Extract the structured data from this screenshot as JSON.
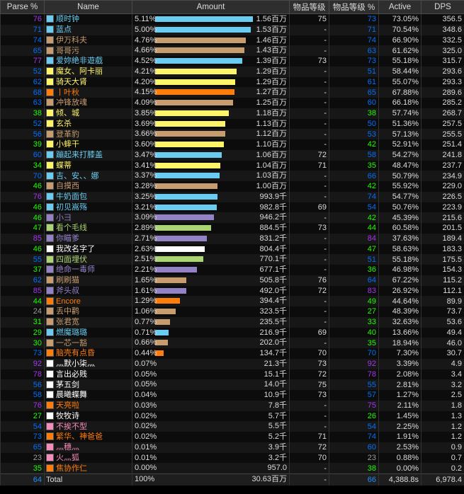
{
  "headers": {
    "parse": "Parse %",
    "name": "Name",
    "amount": "Amount",
    "ilvl": "物品等级",
    "ilvl_parse": "物品等级 %",
    "active": "Active",
    "dps": "DPS"
  },
  "class_colors": {
    "mage": "#69ccf0",
    "hunter": "#abd473",
    "druid": "#ff7d0a",
    "warrior": "#c79c6e",
    "rogue": "#fff569",
    "warlock": "#9482c9",
    "priest": "#ffffff",
    "shaman": "#0070de",
    "paladin": "#f58cba",
    "deathknight": "#c41f3b"
  },
  "rows": [
    {
      "parse": "76",
      "name": "顺时钟",
      "cls": "mage",
      "pct": "5.11%",
      "bar": 1.0,
      "amount": "1.56百万",
      "ilvl": "75",
      "ilvlp": "73",
      "active": "73.05%",
      "dps": "356.5"
    },
    {
      "parse": "71",
      "name": "蓝点",
      "cls": "mage",
      "pct": "5.00%",
      "bar": 0.98,
      "amount": "1.53百万",
      "ilvl": "-",
      "ilvlp": "71",
      "active": "70.54%",
      "dps": "348.6"
    },
    {
      "parse": "74",
      "name": "伊万科夫",
      "cls": "warrior",
      "pct": "4.76%",
      "bar": 0.93,
      "amount": "1.46百万",
      "ilvl": "-",
      "ilvlp": "74",
      "active": "66.90%",
      "dps": "332.5"
    },
    {
      "parse": "65",
      "name": "哥哥污",
      "cls": "warrior",
      "pct": "4.66%",
      "bar": 0.91,
      "amount": "1.43百万",
      "ilvl": "-",
      "ilvlp": "63",
      "active": "61.62%",
      "dps": "325.0"
    },
    {
      "parse": "77",
      "name": "爱妳絶非遊戲",
      "cls": "mage",
      "pct": "4.52%",
      "bar": 0.89,
      "amount": "1.39百万",
      "ilvl": "73",
      "ilvlp": "73",
      "active": "55.18%",
      "dps": "315.7"
    },
    {
      "parse": "52",
      "name": "魔女、阿卡丽",
      "cls": "rogue",
      "pct": "4.21%",
      "bar": 0.83,
      "amount": "1.29百万",
      "ilvl": "-",
      "ilvlp": "51",
      "active": "58.44%",
      "dps": "293.6"
    },
    {
      "parse": "62",
      "name": "骑天大肾",
      "cls": "rogue",
      "pct": "4.20%",
      "bar": 0.82,
      "amount": "1.29百万",
      "ilvl": "-",
      "ilvlp": "61",
      "active": "55.07%",
      "dps": "293.3"
    },
    {
      "parse": "68",
      "name": "丨叶秋",
      "cls": "druid",
      "pct": "4.15%",
      "bar": 0.81,
      "amount": "1.27百万",
      "ilvl": "-",
      "ilvlp": "65",
      "active": "67.88%",
      "dps": "289.6"
    },
    {
      "parse": "63",
      "name": "冲锋放魂",
      "cls": "warrior",
      "pct": "4.09%",
      "bar": 0.8,
      "amount": "1.25百万",
      "ilvl": "-",
      "ilvlp": "60",
      "active": "66.18%",
      "dps": "285.2"
    },
    {
      "parse": "38",
      "name": "倾、城",
      "cls": "rogue",
      "pct": "3.85%",
      "bar": 0.75,
      "amount": "1.18百万",
      "ilvl": "-",
      "ilvlp": "38",
      "active": "57.74%",
      "dps": "268.7"
    },
    {
      "parse": "52",
      "name": "玄杀",
      "cls": "rogue",
      "pct": "3.69%",
      "bar": 0.72,
      "amount": "1.13百万",
      "ilvl": "-",
      "ilvlp": "50",
      "active": "51.36%",
      "dps": "257.5"
    },
    {
      "parse": "56",
      "name": "登革豹",
      "cls": "warrior",
      "pct": "3.66%",
      "bar": 0.72,
      "amount": "1.12百万",
      "ilvl": "-",
      "ilvlp": "53",
      "active": "57.13%",
      "dps": "255.5"
    },
    {
      "parse": "39",
      "name": "小蟀干",
      "cls": "rogue",
      "pct": "3.60%",
      "bar": 0.7,
      "amount": "1.10百万",
      "ilvl": "-",
      "ilvlp": "42",
      "active": "52.91%",
      "dps": "251.4"
    },
    {
      "parse": "60",
      "name": "蹦起来打膝盖",
      "cls": "mage",
      "pct": "3.47%",
      "bar": 0.68,
      "amount": "1.06百万",
      "ilvl": "72",
      "ilvlp": "58",
      "active": "54.27%",
      "dps": "241.8"
    },
    {
      "parse": "34",
      "name": "蝶蒂",
      "cls": "rogue",
      "pct": "3.41%",
      "bar": 0.67,
      "amount": "1.04百万",
      "ilvl": "71",
      "ilvlp": "35",
      "active": "48.47%",
      "dps": "237.7"
    },
    {
      "parse": "70",
      "name": "吉、安、、娜",
      "cls": "mage",
      "pct": "3.37%",
      "bar": 0.66,
      "amount": "1.03百万",
      "ilvl": "-",
      "ilvlp": "66",
      "active": "50.79%",
      "dps": "234.9"
    },
    {
      "parse": "46",
      "name": "自摸西",
      "cls": "warrior",
      "pct": "3.28%",
      "bar": 0.64,
      "amount": "1.00百万",
      "ilvl": "-",
      "ilvlp": "42",
      "active": "55.92%",
      "dps": "229.0"
    },
    {
      "parse": "76",
      "name": "牛奶面包",
      "cls": "mage",
      "pct": "3.25%",
      "bar": 0.64,
      "amount": "993.9千",
      "ilvl": "-",
      "ilvlp": "74",
      "active": "54.77%",
      "dps": "226.5"
    },
    {
      "parse": "46",
      "name": "初见嵩殇",
      "cls": "mage",
      "pct": "3.21%",
      "bar": 0.63,
      "amount": "982.8千",
      "ilvl": "69",
      "ilvlp": "54",
      "active": "50.76%",
      "dps": "223.9"
    },
    {
      "parse": "46",
      "name": "小彐",
      "cls": "warlock",
      "pct": "3.09%",
      "bar": 0.6,
      "amount": "946.2千",
      "ilvl": "-",
      "ilvlp": "42",
      "active": "45.39%",
      "dps": "215.6"
    },
    {
      "parse": "47",
      "name": "看个毛线",
      "cls": "hunter",
      "pct": "2.89%",
      "bar": 0.57,
      "amount": "884.5千",
      "ilvl": "73",
      "ilvlp": "44",
      "active": "60.58%",
      "dps": "201.5"
    },
    {
      "parse": "85",
      "name": "你瞄爹",
      "cls": "warlock",
      "pct": "2.71%",
      "bar": 0.53,
      "amount": "831.2千",
      "ilvl": "-",
      "ilvlp": "84",
      "active": "37.63%",
      "dps": "189.4"
    },
    {
      "parse": "46",
      "name": "我改名字了",
      "cls": "priest",
      "pct": "2.63%",
      "bar": 0.51,
      "amount": "804.4千",
      "ilvl": "-",
      "ilvlp": "47",
      "active": "58.63%",
      "dps": "183.3"
    },
    {
      "parse": "55",
      "name": "四面埋伏",
      "cls": "hunter",
      "pct": "2.51%",
      "bar": 0.49,
      "amount": "770.1千",
      "ilvl": "-",
      "ilvlp": "51",
      "active": "55.18%",
      "dps": "175.5"
    },
    {
      "parse": "37",
      "name": "绝命一毒师",
      "cls": "warlock",
      "pct": "2.21%",
      "bar": 0.43,
      "amount": "677.1千",
      "ilvl": "-",
      "ilvlp": "36",
      "active": "46.98%",
      "dps": "154.3"
    },
    {
      "parse": "62",
      "name": "刷刷猫",
      "cls": "warrior",
      "pct": "1.65%",
      "bar": 0.32,
      "amount": "505.8千",
      "ilvl": "76",
      "ilvlp": "64",
      "active": "67.22%",
      "dps": "115.2"
    },
    {
      "parse": "85",
      "name": "斧头叔",
      "cls": "warlock",
      "pct": "1.61%",
      "bar": 0.32,
      "amount": "492.0千",
      "ilvl": "72",
      "ilvlp": "83",
      "active": "26.92%",
      "dps": "112.1"
    },
    {
      "parse": "44",
      "name": "Encore",
      "cls": "druid",
      "pct": "1.29%",
      "bar": 0.25,
      "amount": "394.4千",
      "ilvl": "-",
      "ilvlp": "49",
      "active": "44.64%",
      "dps": "89.9"
    },
    {
      "parse": "24",
      "name": "丢中鹳",
      "cls": "warrior",
      "pct": "1.06%",
      "bar": 0.21,
      "amount": "323.5千",
      "ilvl": "-",
      "ilvlp": "27",
      "active": "48.39%",
      "dps": "73.7"
    },
    {
      "parse": "31",
      "name": "张君宽",
      "cls": "warrior",
      "pct": "0.77%",
      "bar": 0.15,
      "amount": "235.5千",
      "ilvl": "-",
      "ilvlp": "33",
      "active": "32.63%",
      "dps": "53.6"
    },
    {
      "parse": "29",
      "name": "燃魔璐璐",
      "cls": "mage",
      "pct": "0.71%",
      "bar": 0.14,
      "amount": "216.9千",
      "ilvl": "69",
      "ilvlp": "40",
      "active": "13.66%",
      "dps": "49.4"
    },
    {
      "parse": "30",
      "name": "一芯一豁",
      "cls": "warrior",
      "pct": "0.66%",
      "bar": 0.13,
      "amount": "202.0千",
      "ilvl": "-",
      "ilvlp": "35",
      "active": "18.94%",
      "dps": "46.0"
    },
    {
      "parse": "73",
      "name": "脑壳有点昏",
      "cls": "druid",
      "pct": "0.44%",
      "bar": 0.09,
      "amount": "134.7千",
      "ilvl": "70",
      "ilvlp": "70",
      "active": "7.30%",
      "dps": "30.7"
    },
    {
      "parse": "92",
      "name": "灬默小柒灬",
      "cls": "priest",
      "pct": "0.07%",
      "bar": 0.0,
      "amount": "21.3千",
      "ilvl": "73",
      "ilvlp": "92",
      "active": "3.39%",
      "dps": "4.9"
    },
    {
      "parse": "78",
      "name": "言出必贱",
      "cls": "priest",
      "pct": "0.05%",
      "bar": 0.0,
      "amount": "15.1千",
      "ilvl": "72",
      "ilvlp": "78",
      "active": "2.08%",
      "dps": "3.4"
    },
    {
      "parse": "56",
      "name": "茅五剑",
      "cls": "priest",
      "pct": "0.05%",
      "bar": 0.0,
      "amount": "14.0千",
      "ilvl": "75",
      "ilvlp": "55",
      "active": "2.81%",
      "dps": "3.2"
    },
    {
      "parse": "58",
      "name": "晨曦蝶舞",
      "cls": "priest",
      "pct": "0.04%",
      "bar": 0.0,
      "amount": "10.9千",
      "ilvl": "73",
      "ilvlp": "57",
      "active": "1.27%",
      "dps": "2.5"
    },
    {
      "parse": "76",
      "name": "天亮啦",
      "cls": "druid",
      "pct": "0.03%",
      "bar": 0.0,
      "amount": "7.8千",
      "ilvl": "-",
      "ilvlp": "75",
      "active": "2.11%",
      "dps": "1.8"
    },
    {
      "parse": "27",
      "name": "牧牧诗",
      "cls": "priest",
      "pct": "0.02%",
      "bar": 0.0,
      "amount": "5.7千",
      "ilvl": "-",
      "ilvlp": "26",
      "active": "1.45%",
      "dps": "1.3"
    },
    {
      "parse": "54",
      "name": "不挨不型",
      "cls": "paladin",
      "pct": "0.02%",
      "bar": 0.0,
      "amount": "5.5千",
      "ilvl": "-",
      "ilvlp": "54",
      "active": "2.25%",
      "dps": "1.2"
    },
    {
      "parse": "73",
      "name": "繁华、神爸爸",
      "cls": "druid",
      "pct": "0.02%",
      "bar": 0.0,
      "amount": "5.2千",
      "ilvl": "71",
      "ilvlp": "74",
      "active": "1.91%",
      "dps": "1.2"
    },
    {
      "parse": "65",
      "name": "灬穗灬",
      "cls": "paladin",
      "pct": "0.01%",
      "bar": 0.0,
      "amount": "3.9千",
      "ilvl": "72",
      "ilvlp": "60",
      "active": "2.53%",
      "dps": "0.9"
    },
    {
      "parse": "23",
      "name": "火灬狐",
      "cls": "paladin",
      "pct": "0.01%",
      "bar": 0.0,
      "amount": "3.2千",
      "ilvl": "70",
      "ilvlp": "23",
      "active": "0.88%",
      "dps": "0.7"
    },
    {
      "parse": "35",
      "name": "焦协作仁",
      "cls": "druid",
      "pct": "0.00%",
      "bar": 0.0,
      "amount": "957.0",
      "ilvl": "-",
      "ilvlp": "38",
      "active": "0.00%",
      "dps": "0.2"
    }
  ],
  "total": {
    "parse": "64",
    "name": "Total",
    "pct": "100%",
    "amount": "30.63百万",
    "ilvl": "-",
    "ilvlp": "66",
    "active": "4,388.8s",
    "dps": "6,978.4"
  }
}
